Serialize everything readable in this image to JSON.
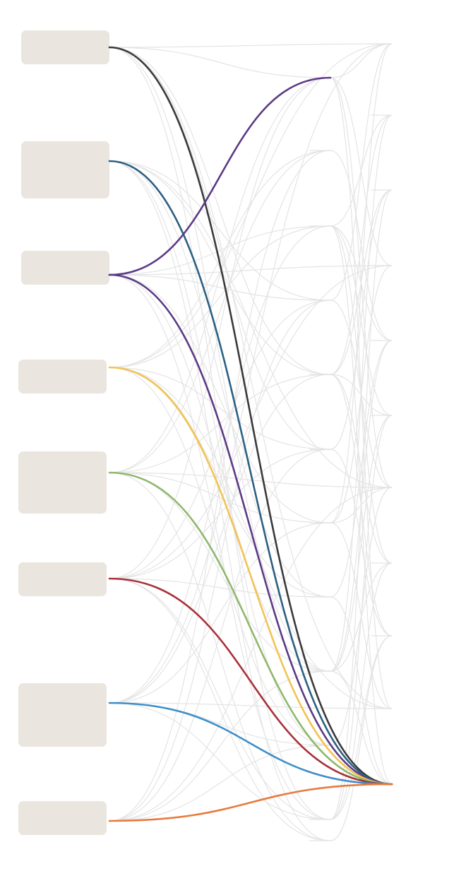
{
  "diagram": {
    "type": "parallel-flow",
    "colors": {
      "node_fill": "#ebe5df",
      "grey_link": "#e4e4e4",
      "background": "#ffffff"
    },
    "sources": [
      {
        "id": "s1",
        "color": "#3a3a3a"
      },
      {
        "id": "s2",
        "color": "#2c5f83"
      },
      {
        "id": "s3",
        "color": "#5b3a85"
      },
      {
        "id": "s4",
        "color": "#f2c351"
      },
      {
        "id": "s5",
        "color": "#8fb86c"
      },
      {
        "id": "s6",
        "color": "#a8323a"
      },
      {
        "id": "s7",
        "color": "#3e8ec9"
      },
      {
        "id": "s8",
        "color": "#e87a3e"
      }
    ],
    "middle_targets": [
      "m1",
      "m2",
      "m3",
      "m4",
      "m5",
      "m6",
      "m7",
      "m8",
      "m9",
      "m10",
      "m11",
      "m12"
    ],
    "right_targets": [
      "r1",
      "r2",
      "r3",
      "r4",
      "r5",
      "r6",
      "r7",
      "r8",
      "r9",
      "r10",
      "r11"
    ],
    "highlighted_links": [
      {
        "from": "s1",
        "to": "r11",
        "color": "#3a3a3a"
      },
      {
        "from": "s2",
        "to": "r11",
        "color": "#2c5f83"
      },
      {
        "from": "s3",
        "to": "m1",
        "color": "#5b3a85"
      },
      {
        "from": "s3",
        "to": "r11",
        "color": "#5b3a85"
      },
      {
        "from": "s4",
        "to": "r11",
        "color": "#f2c351"
      },
      {
        "from": "s5",
        "to": "r11",
        "color": "#8fb86c"
      },
      {
        "from": "s6",
        "to": "r11",
        "color": "#a8323a"
      },
      {
        "from": "s7",
        "to": "r11",
        "color": "#3e8ec9"
      },
      {
        "from": "s8",
        "to": "r11",
        "color": "#e87a3e"
      }
    ]
  }
}
